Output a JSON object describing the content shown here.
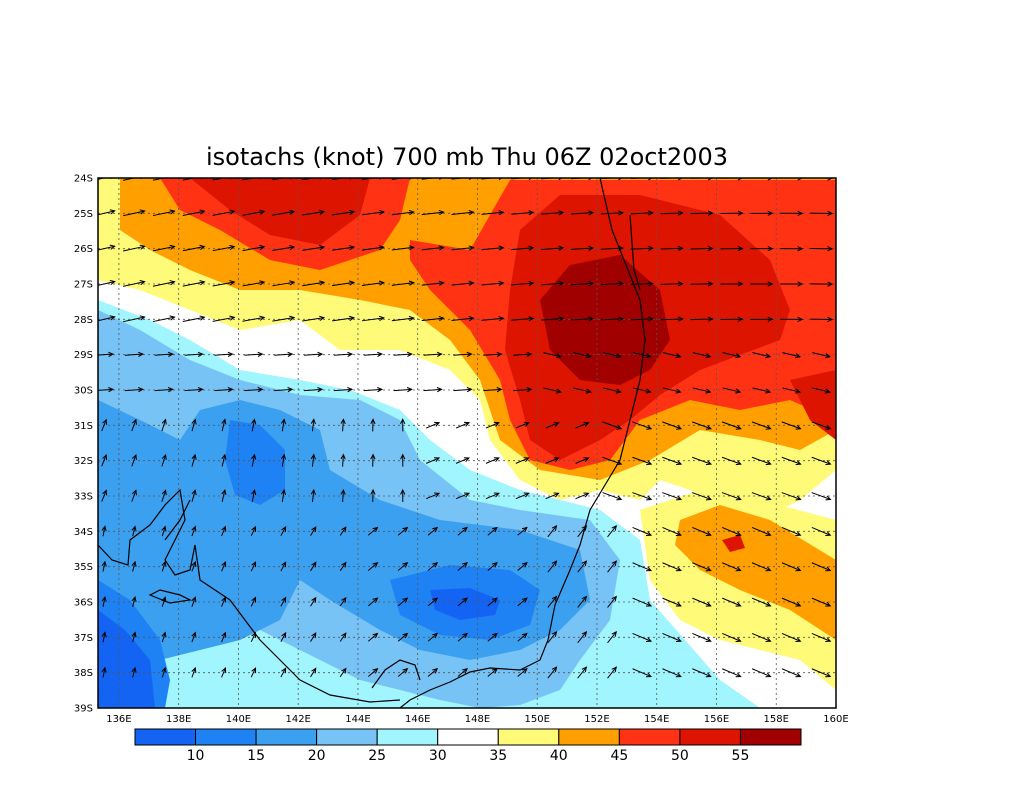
{
  "title": "isotachs (knot) 700 mb Thu 06Z 02oct2003",
  "lat_labels": [
    "24S",
    "25S",
    "26S",
    "27S",
    "28S",
    "29S",
    "30S",
    "31S",
    "32S",
    "33S",
    "34S",
    "35S",
    "36S",
    "37S",
    "38S",
    "39S"
  ],
  "lon_labels": [
    "136E",
    "138E",
    "140E",
    "142E",
    "144E",
    "146E",
    "148E",
    "150E",
    "152E",
    "154E",
    "156E",
    "158E",
    "160E"
  ],
  "colorbar": {
    "labels": [
      "10",
      "15",
      "20",
      "25",
      "30",
      "35",
      "40",
      "45",
      "50",
      "55"
    ],
    "colors": [
      "#1464F4",
      "#1E82F5",
      "#3CA0F0",
      "#78C3F5",
      "#A0F5FF",
      "#FFFFFF",
      "#FFFA78",
      "#FFA000",
      "#FF3214",
      "#DC1400",
      "#A00000"
    ]
  },
  "map": {
    "lon_range": [
      135.3,
      160
    ],
    "lat_range": [
      -39,
      -24
    ],
    "grid": "dotted",
    "features": [
      "isotach shading",
      "wind direction arrows",
      "coastlines",
      "state borders"
    ]
  }
}
